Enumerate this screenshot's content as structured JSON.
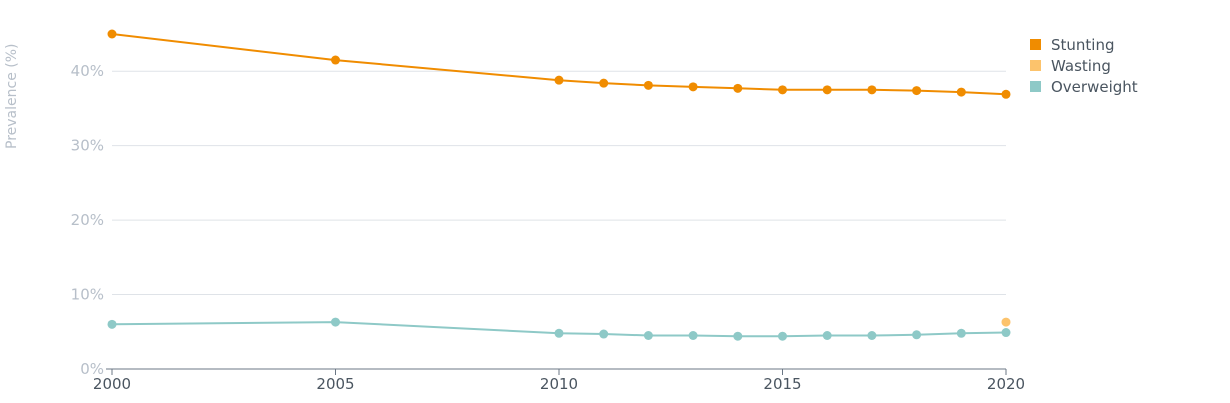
{
  "chart_data": {
    "type": "line",
    "ylabel": "Prevalence (%)",
    "xlim": [
      2000,
      2020
    ],
    "ylim": [
      0,
      45
    ],
    "x_ticks": [
      {
        "value": 2000,
        "label": "2000"
      },
      {
        "value": 2005,
        "label": "2005"
      },
      {
        "value": 2010,
        "label": "2010"
      },
      {
        "value": 2015,
        "label": "2015"
      },
      {
        "value": 2020,
        "label": "2020"
      }
    ],
    "y_ticks": [
      {
        "value": 0,
        "label": "0%"
      },
      {
        "value": 10,
        "label": "10%"
      },
      {
        "value": 20,
        "label": "20%"
      },
      {
        "value": 30,
        "label": "30%"
      },
      {
        "value": 40,
        "label": "40%"
      }
    ],
    "grid": true,
    "legend_position": "top-right",
    "series": [
      {
        "name": "Stunting",
        "color": "#f08c00",
        "points": [
          [
            2000,
            45.0
          ],
          [
            2005,
            41.5
          ],
          [
            2010,
            38.8
          ],
          [
            2011,
            38.4
          ],
          [
            2012,
            38.1
          ],
          [
            2013,
            37.9
          ],
          [
            2014,
            37.7
          ],
          [
            2015,
            37.5
          ],
          [
            2016,
            37.5
          ],
          [
            2017,
            37.5
          ],
          [
            2018,
            37.4
          ],
          [
            2019,
            37.2
          ],
          [
            2020,
            36.9
          ]
        ]
      },
      {
        "name": "Wasting",
        "color": "#fcc36c",
        "points": [
          [
            2020,
            6.3
          ]
        ]
      },
      {
        "name": "Overweight",
        "color": "#8ec9c7",
        "points": [
          [
            2000,
            6.0
          ],
          [
            2005,
            6.3
          ],
          [
            2010,
            4.8
          ],
          [
            2011,
            4.7
          ],
          [
            2012,
            4.5
          ],
          [
            2013,
            4.5
          ],
          [
            2014,
            4.4
          ],
          [
            2015,
            4.4
          ],
          [
            2016,
            4.5
          ],
          [
            2017,
            4.5
          ],
          [
            2018,
            4.6
          ],
          [
            2019,
            4.8
          ],
          [
            2020,
            4.9
          ]
        ]
      }
    ]
  }
}
